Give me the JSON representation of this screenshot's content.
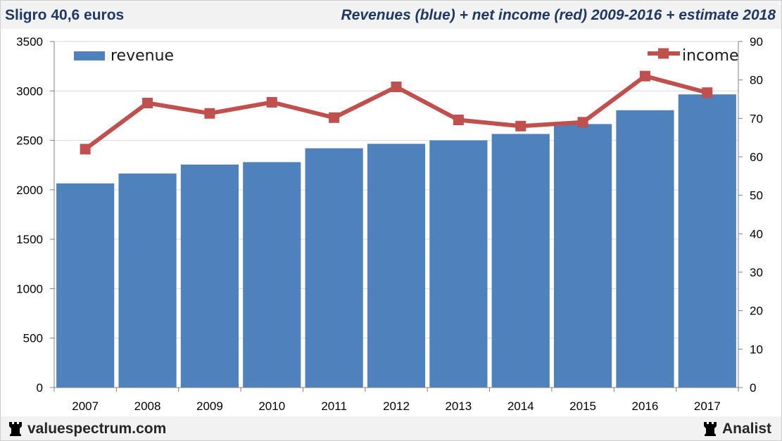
{
  "header": {
    "left_title": "Sligro 40,6 euros",
    "right_title": "Revenues (blue) + net income (red) 2009-2016 + estimate 2018"
  },
  "footer": {
    "site": "valuespectrum.com",
    "brand": "Analist",
    "logo_icon": "chess-rook-icon"
  },
  "colors": {
    "revenue": "#4f81bd",
    "income": "#c0504d",
    "header_text": "#1f3864",
    "band": "#f2f2f2"
  },
  "chart_data": {
    "type": "bar",
    "categories": [
      "2007",
      "2008",
      "2009",
      "2010",
      "2011",
      "2012",
      "2013",
      "2014",
      "2015",
      "2016",
      "2017"
    ],
    "series": [
      {
        "name": "revenue",
        "type": "bar",
        "axis": "left",
        "values": [
          2065,
          2165,
          2255,
          2280,
          2420,
          2465,
          2500,
          2565,
          2665,
          2805,
          2965
        ]
      },
      {
        "name": "income",
        "type": "line",
        "axis": "right",
        "values": [
          62,
          74,
          71.3,
          74.2,
          70.2,
          78.2,
          69.6,
          68,
          69,
          81,
          76.7
        ]
      }
    ],
    "y_left": {
      "min": 0,
      "max": 3500,
      "ticks": [
        "0",
        "500",
        "1000",
        "1500",
        "2000",
        "2500",
        "3000",
        "3500"
      ]
    },
    "y_right": {
      "min": 0,
      "max": 90,
      "ticks": [
        "0",
        "10",
        "20",
        "30",
        "40",
        "50",
        "60",
        "70",
        "80",
        "90"
      ]
    },
    "legend": [
      {
        "label": "revenue",
        "position": "top-left"
      },
      {
        "label": "income",
        "position": "top-right"
      }
    ],
    "grid": true,
    "title": "",
    "xlabel": "",
    "ylabel": ""
  }
}
